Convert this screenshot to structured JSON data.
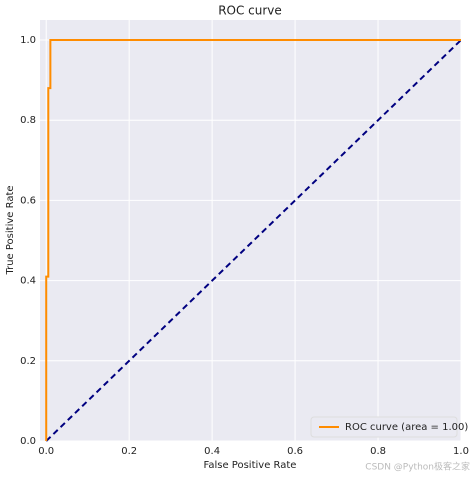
{
  "chart_data": {
    "type": "line",
    "title": "ROC curve",
    "xlabel": "False Positive Rate",
    "ylabel": "True Positive Rate",
    "series": [
      {
        "name": "ROC curve (area = 1.00)",
        "color": "#ff8c00",
        "dash": false,
        "x": [
          0,
          0,
          0.005,
          0.005,
          0.01,
          0.01,
          1.0
        ],
        "values": [
          0,
          0.41,
          0.41,
          0.88,
          0.88,
          1.0,
          1.0
        ]
      },
      {
        "color": "#000080",
        "dash": true,
        "x": [
          0,
          1
        ],
        "values": [
          0,
          1
        ]
      }
    ],
    "xlim": [
      -0.015,
      1.0
    ],
    "ylim": [
      0,
      1.05
    ],
    "xticks": [
      {
        "value": 0,
        "label": "0.0"
      },
      0.2,
      0.4,
      0.6,
      0.8,
      {
        "value": 1,
        "label": "1.0"
      }
    ],
    "yticks": [
      {
        "value": 0,
        "label": "0.0"
      },
      0.2,
      0.4,
      0.6,
      0.8,
      {
        "value": 1,
        "label": "1.0"
      }
    ],
    "grid": true,
    "legend": "lower right",
    "watermark": "CSDN @Python极客之家"
  }
}
